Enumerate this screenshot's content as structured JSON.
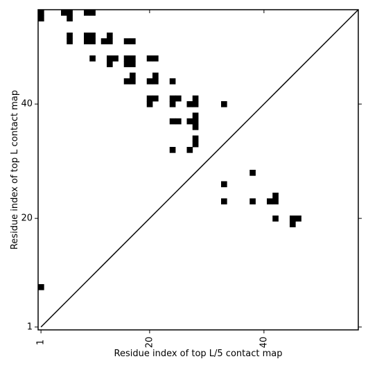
{
  "chart_data": {
    "type": "heatmap",
    "xlabel": "Residue index of top L/5 contact map",
    "ylabel": "Residue index of top L contact map",
    "xlim": [
      0.5,
      56.5
    ],
    "ylim": [
      0.5,
      56.5
    ],
    "x_ticks": [
      1,
      20,
      40
    ],
    "y_ticks": [
      1,
      20,
      40
    ],
    "x_tick_labels": [
      "1",
      "20",
      "40"
    ],
    "y_tick_labels": [
      "1",
      "20",
      "40"
    ],
    "colors": {
      "contact": "#000000",
      "background": "#ffffff",
      "diagonal": "#000000"
    },
    "diagonal": true,
    "lower_triangle_contacts": [
      [
        1,
        8
      ],
      [
        33,
        23
      ],
      [
        33,
        26
      ],
      [
        38,
        23
      ],
      [
        38,
        28
      ],
      [
        41,
        23
      ],
      [
        42,
        23
      ],
      [
        42,
        24
      ],
      [
        42,
        20
      ],
      [
        45,
        19
      ],
      [
        45,
        20
      ],
      [
        46,
        20
      ]
    ],
    "upper_triangle_contacts": [
      [
        1,
        55
      ],
      [
        1,
        56
      ],
      [
        5,
        56
      ],
      [
        6,
        55
      ],
      [
        6,
        56
      ],
      [
        6,
        51
      ],
      [
        6,
        52
      ],
      [
        9,
        56
      ],
      [
        10,
        56
      ],
      [
        9,
        51
      ],
      [
        9,
        52
      ],
      [
        10,
        51
      ],
      [
        10,
        52
      ],
      [
        10,
        48
      ],
      [
        12,
        51
      ],
      [
        13,
        51
      ],
      [
        13,
        52
      ],
      [
        13,
        47
      ],
      [
        13,
        48
      ],
      [
        14,
        48
      ],
      [
        16,
        47
      ],
      [
        16,
        48
      ],
      [
        17,
        47
      ],
      [
        17,
        48
      ],
      [
        16,
        51
      ],
      [
        17,
        51
      ],
      [
        16,
        44
      ],
      [
        17,
        44
      ],
      [
        17,
        45
      ],
      [
        20,
        48
      ],
      [
        21,
        48
      ],
      [
        20,
        44
      ],
      [
        21,
        44
      ],
      [
        21,
        45
      ],
      [
        20,
        40
      ],
      [
        20,
        41
      ],
      [
        21,
        41
      ],
      [
        24,
        44
      ],
      [
        24,
        40
      ],
      [
        24,
        41
      ],
      [
        25,
        41
      ],
      [
        24,
        37
      ],
      [
        25,
        37
      ],
      [
        24,
        32
      ],
      [
        27,
        40
      ],
      [
        28,
        40
      ],
      [
        28,
        41
      ],
      [
        27,
        37
      ],
      [
        28,
        37
      ],
      [
        28,
        38
      ],
      [
        28,
        36
      ],
      [
        28,
        33
      ],
      [
        28,
        34
      ],
      [
        27,
        32
      ],
      [
        33,
        40
      ]
    ]
  }
}
